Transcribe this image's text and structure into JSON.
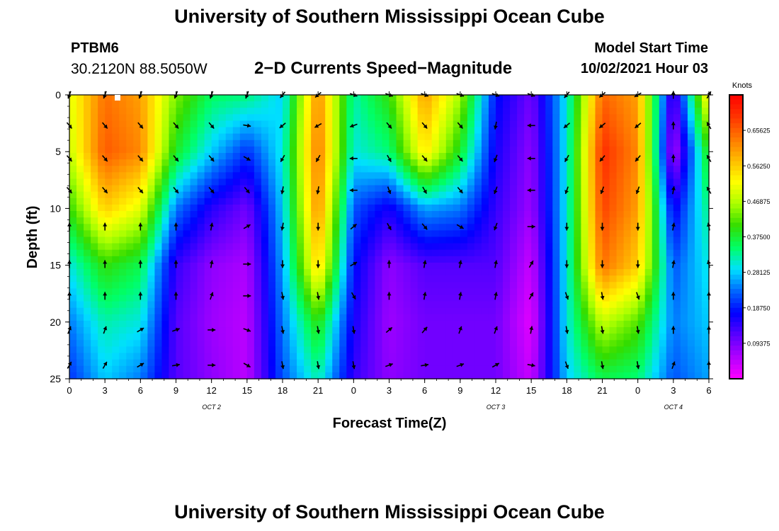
{
  "header": {
    "title": "University of Southern Mississippi Ocean Cube",
    "station": "PTBM6",
    "coords": "30.2120N  88.5050W",
    "plot_title": "2−D Currents Speed−Magnitude",
    "start_label": "Model Start Time",
    "start_value": "10/02/2021 Hour 03"
  },
  "footer": {
    "title": "University of Southern Mississippi Ocean Cube"
  },
  "chart_data": {
    "type": "heatmap",
    "title": "2−D Currents Speed−Magnitude",
    "xlabel": "Forecast Time(Z)",
    "ylabel": "Depth (ft)",
    "x_range_hours": [
      0,
      54
    ],
    "y_range_ft": [
      0,
      25
    ],
    "x_ticks": [
      "0",
      "3",
      "6",
      "9",
      "12",
      "15",
      "18",
      "21",
      "0",
      "3",
      "6",
      "9",
      "12",
      "15",
      "18",
      "21",
      "0",
      "3",
      "6"
    ],
    "y_ticks": [
      "0",
      "5",
      "10",
      "15",
      "20",
      "25"
    ],
    "date_labels": [
      {
        "text": "OCT 2",
        "hour": 12
      },
      {
        "text": "OCT 3",
        "hour": 36
      },
      {
        "text": "OCT 4",
        "hour": 51
      }
    ],
    "colorbar": {
      "unit": "Knots",
      "range": [
        0,
        0.75
      ],
      "ticks": [
        "0.09375",
        "0.18750",
        "0.28125",
        "0.37500",
        "0.46875",
        "0.56250",
        "0.65625"
      ],
      "colors": [
        "#ff00ff",
        "#b000ff",
        "#5a00ff",
        "#0000ff",
        "#0066ff",
        "#00e0ff",
        "#00ff66",
        "#33dd00",
        "#aaff00",
        "#ffff00",
        "#ffbb00",
        "#ff7700",
        "#ff3300",
        "#ff0000"
      ]
    },
    "speed_field": {
      "hours": [
        0,
        3,
        6,
        9,
        12,
        15,
        18,
        21,
        24,
        27,
        30,
        33,
        36,
        39,
        42,
        45,
        48,
        51,
        54
      ],
      "depths": [
        0,
        5,
        10,
        15,
        20,
        25
      ],
      "values": [
        [
          0.5,
          0.64,
          0.6,
          0.44,
          0.35,
          0.34,
          0.28,
          0.62,
          0.32,
          0.4,
          0.6,
          0.46,
          0.18,
          0.1,
          0.3,
          0.65,
          0.6,
          0.1,
          0.55
        ],
        [
          0.48,
          0.66,
          0.62,
          0.38,
          0.28,
          0.2,
          0.3,
          0.64,
          0.3,
          0.34,
          0.54,
          0.38,
          0.16,
          0.08,
          0.3,
          0.7,
          0.62,
          0.05,
          0.4
        ],
        [
          0.4,
          0.56,
          0.5,
          0.24,
          0.15,
          0.1,
          0.28,
          0.62,
          0.22,
          0.16,
          0.26,
          0.24,
          0.14,
          0.07,
          0.3,
          0.68,
          0.6,
          0.16,
          0.34
        ],
        [
          0.3,
          0.4,
          0.36,
          0.14,
          0.08,
          0.06,
          0.26,
          0.56,
          0.18,
          0.08,
          0.12,
          0.12,
          0.12,
          0.04,
          0.3,
          0.64,
          0.56,
          0.22,
          0.3
        ],
        [
          0.24,
          0.32,
          0.3,
          0.12,
          0.07,
          0.05,
          0.24,
          0.4,
          0.16,
          0.07,
          0.1,
          0.1,
          0.1,
          0.02,
          0.3,
          0.48,
          0.42,
          0.24,
          0.28
        ],
        [
          0.2,
          0.28,
          0.24,
          0.12,
          0.08,
          0.05,
          0.22,
          0.32,
          0.14,
          0.08,
          0.1,
          0.1,
          0.1,
          0.04,
          0.28,
          0.36,
          0.34,
          0.22,
          0.26
        ]
      ]
    },
    "current_vectors": {
      "hours": [
        0,
        3,
        6,
        9,
        12,
        15,
        18,
        21,
        24,
        27,
        30,
        33,
        36,
        39,
        42,
        45,
        48,
        51,
        54
      ],
      "depths": [
        0,
        2.7,
        5.6,
        8.4,
        11.6,
        14.9,
        17.7,
        20.7,
        23.8
      ],
      "angles_deg": [
        [
          200,
          200,
          200,
          200,
          200,
          200,
          220,
          230,
          110,
          110,
          110,
          110,
          110,
          110,
          220,
          230,
          240,
          0,
          30
        ],
        [
          140,
          140,
          140,
          140,
          140,
          100,
          230,
          240,
          250,
          140,
          140,
          140,
          190,
          270,
          230,
          230,
          230,
          0,
          330
        ],
        [
          140,
          140,
          140,
          140,
          140,
          120,
          210,
          210,
          270,
          150,
          140,
          140,
          200,
          270,
          210,
          220,
          220,
          0,
          330
        ],
        [
          140,
          140,
          140,
          140,
          140,
          140,
          190,
          190,
          270,
          160,
          150,
          140,
          200,
          270,
          200,
          200,
          200,
          10,
          330
        ],
        [
          0,
          0,
          0,
          0,
          10,
          60,
          190,
          180,
          50,
          150,
          140,
          120,
          200,
          90,
          180,
          180,
          180,
          10,
          350
        ],
        [
          0,
          0,
          0,
          0,
          10,
          90,
          180,
          180,
          60,
          0,
          10,
          10,
          10,
          30,
          180,
          180,
          180,
          10,
          350
        ],
        [
          0,
          0,
          0,
          0,
          20,
          90,
          170,
          170,
          150,
          0,
          10,
          10,
          10,
          30,
          160,
          170,
          160,
          0,
          0
        ],
        [
          20,
          20,
          60,
          70,
          90,
          110,
          170,
          170,
          170,
          50,
          40,
          20,
          20,
          10,
          170,
          170,
          170,
          0,
          0
        ],
        [
          30,
          30,
          60,
          80,
          90,
          120,
          170,
          170,
          170,
          70,
          80,
          70,
          60,
          100,
          160,
          170,
          170,
          20,
          0
        ]
      ]
    }
  }
}
